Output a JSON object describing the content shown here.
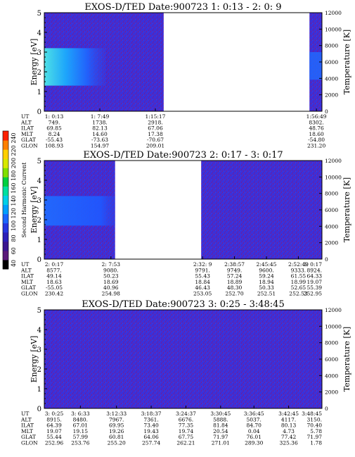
{
  "colorbar": {
    "label": "Second Harmonic Current",
    "ticks": [
      40,
      60,
      80,
      100,
      120,
      140,
      160,
      180,
      200,
      220,
      240
    ],
    "colors": [
      "#000000",
      "#5a1a7a",
      "#3a1690",
      "#2b1fb8",
      "#2436e0",
      "#1a66ff",
      "#00a0ff",
      "#00d0e8",
      "#00e0a0",
      "#00d040",
      "#80e000",
      "#d8e800",
      "#ffd000",
      "#ff8000",
      "#ff2000"
    ]
  },
  "chart_data": [
    {
      "type": "heatmap",
      "title": "EXOS-D/TED   Date:900723  1: 0:13 - 2: 0: 9",
      "ylabel": "Energy [eV]",
      "ylabel_right": "Temperature [K]",
      "ylim": [
        0,
        5
      ],
      "yticks": [
        0,
        1,
        2,
        3,
        4,
        5
      ],
      "ylim_right": [
        0,
        12000
      ],
      "yticks_right": [
        0,
        2000,
        4000,
        6000,
        8000,
        10000,
        12000
      ],
      "row_labels": [
        "UT",
        "ALT",
        "ILAT",
        "MLT",
        "GLAT",
        "GLON"
      ],
      "columns": [
        {
          "f": 0.0,
          "values": [
            "1: 0:13",
            "749.",
            "69.85",
            "8.24",
            "-55.43",
            "108.93"
          ]
        },
        {
          "f": 0.2,
          "values": [
            "1: 7:49",
            "1738.",
            "82.13",
            "14.60",
            "-73.63",
            "154.97"
          ]
        },
        {
          "f": 0.4,
          "values": [
            "1:15:17",
            "2918.",
            "67.06",
            "17.38",
            "-70.67",
            "209.01"
          ]
        },
        {
          "f": 0.98,
          "values": [
            "1:56:49",
            "8302.",
            "48.76",
            "18.60",
            "-54.80",
            "231.20"
          ]
        }
      ],
      "data_segments": [
        [
          0.0,
          0.43
        ],
        [
          0.955,
          1.0
        ]
      ],
      "band": {
        "ymin": 1.3,
        "ymax": 3.2,
        "peak_x": [
          0.0,
          0.16
        ]
      }
    },
    {
      "type": "heatmap",
      "title": "EXOS-D/TED   Date:900723  2: 0:17 - 3: 0:17",
      "ylabel": "Energy [eV]",
      "ylabel_right": "Temperature [K]",
      "ylim": [
        0,
        5
      ],
      "yticks": [
        0,
        1,
        2,
        3,
        4,
        5
      ],
      "ylim_right": [
        0,
        12000
      ],
      "yticks_right": [
        0,
        2000,
        4000,
        6000,
        8000,
        10000,
        12000
      ],
      "row_labels": [
        "UT",
        "ALT",
        "ILAT",
        "MLT",
        "GLAT",
        "GLON"
      ],
      "columns": [
        {
          "f": 0.0,
          "values": [
            "2: 0:17",
            "8577.",
            "49.14",
            "18.63",
            "-55.05",
            "230.42"
          ]
        },
        {
          "f": 0.24,
          "values": [
            "2: 7:53",
            "9080.",
            "50.23",
            "18.69",
            "40.96",
            "254.98"
          ]
        },
        {
          "f": 0.57,
          "values": [
            "2:32: 9",
            "9791.",
            "55.43",
            "18.84",
            "46.43",
            "253.05"
          ]
        },
        {
          "f": 0.685,
          "values": [
            "2:38:57",
            "9749.",
            "57.24",
            "18.89",
            "48.30",
            "252.70"
          ]
        },
        {
          "f": 0.8,
          "values": [
            "2:45:45",
            "9600.",
            "59.24",
            "18.94",
            "50.33",
            "252.51"
          ]
        },
        {
          "f": 0.915,
          "values": [
            "2:52:49",
            "9333.",
            "61.55",
            "18.99",
            "52.65",
            "252.53"
          ]
        },
        {
          "f": 1.0,
          "values": [
            "3: 0:17",
            "8924.",
            "64.33",
            "19.07",
            "55.39",
            "252.95"
          ]
        }
      ],
      "data_segments": [
        [
          0.0,
          0.255
        ],
        [
          0.565,
          1.0
        ]
      ],
      "band": {
        "ymin": 1.7,
        "ymax": 3.2,
        "peak_x": [
          0.0,
          0.24
        ]
      }
    },
    {
      "type": "heatmap",
      "title": "EXOS-D/TED   Date:900723  3: 0:25 - 3:48:45",
      "ylabel": "Energy [eV]",
      "ylabel_right": "Temperature [K]",
      "ylim": [
        0,
        5
      ],
      "yticks": [
        0,
        1,
        2,
        3,
        4,
        5
      ],
      "ylim_right": [
        0,
        12000
      ],
      "yticks_right": [
        0,
        2000,
        4000,
        6000,
        8000,
        10000,
        12000
      ],
      "row_labels": [
        "UT",
        "ALT",
        "ILAT",
        "MLT",
        "GLAT",
        "GLON"
      ],
      "columns": [
        {
          "f": 0.0,
          "values": [
            "3: 0:25",
            "8915.",
            "64.39",
            "19.07",
            "55.44",
            "252.96"
          ]
        },
        {
          "f": 0.13,
          "values": [
            "3: 6:33",
            "8480.",
            "67.01",
            "19.15",
            "57.99",
            "253.76"
          ]
        },
        {
          "f": 0.26,
          "values": [
            "3:12:33",
            "7967.",
            "69.95",
            "19.26",
            "60.81",
            "255.20"
          ]
        },
        {
          "f": 0.385,
          "values": [
            "3:18:37",
            "7361.",
            "73.40",
            "19.43",
            "64.06",
            "257.74"
          ]
        },
        {
          "f": 0.51,
          "values": [
            "3:24:37",
            "6676.",
            "77.35",
            "19.74",
            "67.75",
            "262.21"
          ]
        },
        {
          "f": 0.635,
          "values": [
            "3:30:45",
            "5888.",
            "81.84",
            "20.54",
            "71.97",
            "271.01"
          ]
        },
        {
          "f": 0.755,
          "values": [
            "3:36:45",
            "5037.",
            "84.70",
            "0.04",
            "76.01",
            "289.30"
          ]
        },
        {
          "f": 0.88,
          "values": [
            "3:42:45",
            "4117.",
            "80.13",
            "4.73",
            "77.42",
            "325.36"
          ]
        },
        {
          "f": 1.0,
          "values": [
            "3:48:45",
            "3150.",
            "70.40",
            "5.78",
            "71.97",
            "1.78"
          ]
        }
      ],
      "data_segments": [
        [
          0.0,
          1.0
        ]
      ],
      "band": null
    }
  ]
}
